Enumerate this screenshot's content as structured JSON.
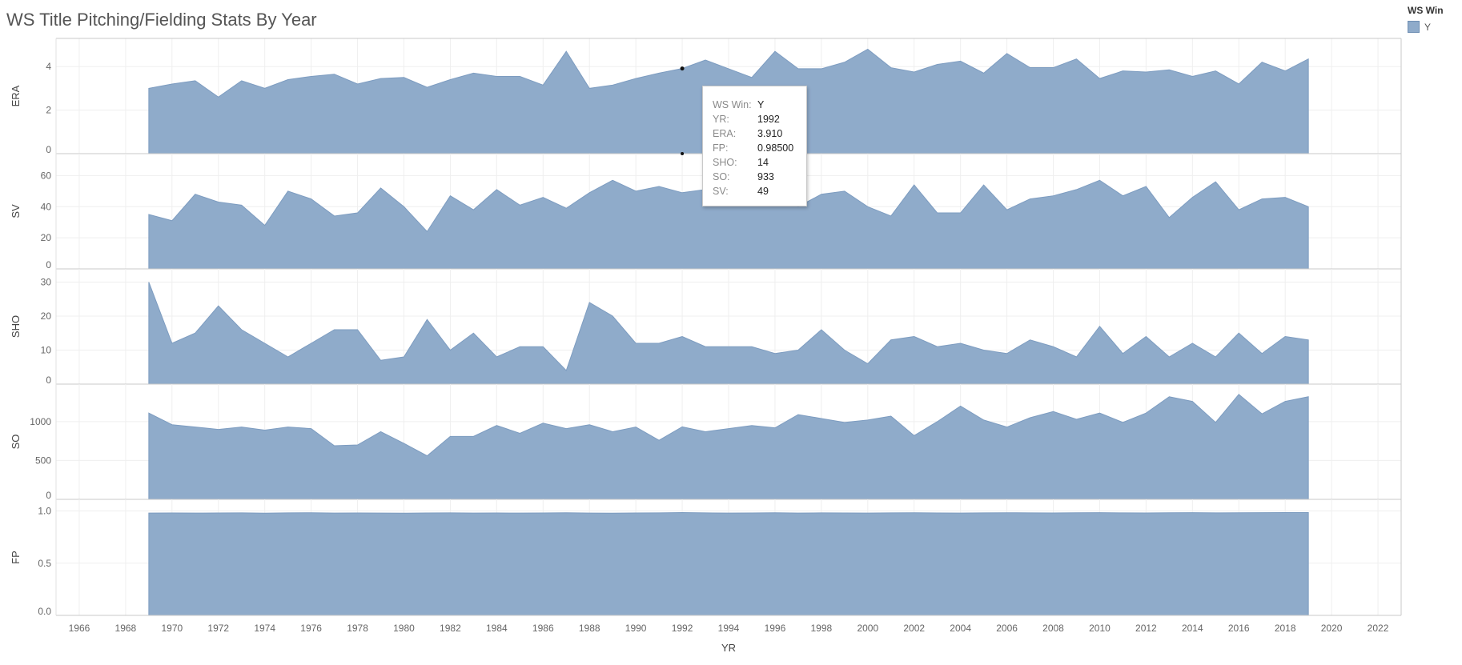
{
  "title": "WS Title Pitching/Fielding Stats By Year",
  "legend": {
    "title": "WS Win",
    "items": [
      {
        "label": "Y",
        "color": "#8fabca"
      }
    ]
  },
  "tooltip": {
    "rows": [
      {
        "label": "WS Win:",
        "value": "Y"
      },
      {
        "label": "YR:",
        "value": "1992"
      },
      {
        "label": "ERA:",
        "value": "3.910"
      },
      {
        "label": "FP:",
        "value": "0.98500"
      },
      {
        "label": "SHO:",
        "value": "14"
      },
      {
        "label": "SO:",
        "value": "933"
      },
      {
        "label": "SV:",
        "value": "49"
      }
    ]
  },
  "chart_data": {
    "type": "area",
    "xlabel": "YR",
    "x_ticks": [
      1966,
      1968,
      1970,
      1972,
      1974,
      1976,
      1978,
      1980,
      1982,
      1984,
      1986,
      1988,
      1990,
      1992,
      1994,
      1996,
      1998,
      2000,
      2002,
      2004,
      2006,
      2008,
      2010,
      2012,
      2014,
      2016,
      2018,
      2020,
      2022
    ],
    "xlim": [
      1965,
      2023
    ],
    "x": [
      1969,
      1970,
      1971,
      1972,
      1973,
      1974,
      1975,
      1976,
      1977,
      1978,
      1979,
      1980,
      1981,
      1982,
      1983,
      1984,
      1985,
      1986,
      1987,
      1988,
      1989,
      1990,
      1991,
      1992,
      1993,
      1994,
      1995,
      1996,
      1997,
      1998,
      1999,
      2000,
      2001,
      2002,
      2003,
      2004,
      2005,
      2006,
      2007,
      2008,
      2009,
      2010,
      2011,
      2012,
      2013,
      2014,
      2015,
      2016,
      2017,
      2018,
      2019
    ],
    "color": "#8fabca",
    "grid": true,
    "panels": [
      {
        "ylabel": "ERA",
        "ylim": [
          0,
          5
        ],
        "yticks": [
          0,
          2,
          4
        ],
        "values": [
          3.0,
          3.2,
          3.35,
          2.6,
          3.35,
          3.0,
          3.4,
          3.55,
          3.65,
          3.2,
          3.45,
          3.5,
          3.05,
          3.4,
          3.7,
          3.55,
          3.55,
          3.15,
          4.7,
          3.0,
          3.15,
          3.45,
          3.7,
          3.91,
          4.3,
          3.9,
          3.5,
          4.7,
          3.9,
          3.9,
          4.2,
          4.8,
          3.95,
          3.75,
          4.1,
          4.25,
          3.7,
          4.6,
          3.95,
          3.95,
          4.35,
          3.45,
          3.8,
          3.75,
          3.85,
          3.55,
          3.8,
          3.2,
          4.2,
          3.8,
          4.35
        ]
      },
      {
        "ylabel": "SV",
        "ylim": [
          0,
          70
        ],
        "yticks": [
          0,
          20,
          40,
          60
        ],
        "values": [
          35,
          31,
          48,
          43,
          41,
          28,
          50,
          45,
          34,
          36,
          52,
          40,
          24,
          47,
          38,
          51,
          41,
          46,
          39,
          49,
          57,
          50,
          53,
          49,
          51,
          46,
          51,
          49,
          40,
          48,
          50,
          40,
          34,
          54,
          36,
          36,
          54,
          38,
          45,
          47,
          51,
          57,
          47,
          53,
          33,
          46,
          56,
          38,
          45,
          46,
          40
        ]
      },
      {
        "ylabel": "SHO",
        "ylim": [
          0,
          32
        ],
        "yticks": [
          0,
          10,
          20,
          30
        ],
        "values": [
          30,
          12,
          15,
          23,
          16,
          12,
          8,
          12,
          16,
          16,
          7,
          8,
          19,
          10,
          15,
          8,
          11,
          11,
          4,
          24,
          20,
          12,
          12,
          14,
          11,
          11,
          11,
          9,
          10,
          16,
          10,
          6,
          13,
          14,
          11,
          12,
          10,
          9,
          13,
          11,
          8,
          17,
          9,
          14,
          8,
          12,
          8,
          15,
          9,
          14,
          13
        ]
      },
      {
        "ylabel": "SO",
        "ylim": [
          0,
          1400
        ],
        "yticks": [
          0,
          500,
          1000
        ],
        "values": [
          1110,
          960,
          930,
          900,
          930,
          890,
          930,
          910,
          690,
          700,
          870,
          720,
          560,
          810,
          810,
          950,
          850,
          980,
          910,
          960,
          870,
          930,
          760,
          933,
          870,
          910,
          950,
          920,
          1090,
          1040,
          990,
          1020,
          1070,
          820,
          1000,
          1200,
          1020,
          930,
          1050,
          1130,
          1030,
          1110,
          990,
          1110,
          1320,
          1260,
          990,
          1350,
          1100,
          1260,
          1320
        ]
      },
      {
        "ylabel": "FP",
        "ylim": [
          0,
          1.05
        ],
        "yticks": [
          0.0,
          0.5,
          1.0
        ],
        "tick_labels": [
          "0.0",
          "0.5",
          "1.0"
        ],
        "values": [
          0.98,
          0.981,
          0.98,
          0.981,
          0.982,
          0.979,
          0.982,
          0.983,
          0.98,
          0.981,
          0.98,
          0.979,
          0.981,
          0.982,
          0.98,
          0.981,
          0.98,
          0.981,
          0.983,
          0.98,
          0.979,
          0.981,
          0.982,
          0.985,
          0.982,
          0.98,
          0.981,
          0.983,
          0.98,
          0.982,
          0.981,
          0.98,
          0.982,
          0.983,
          0.981,
          0.98,
          0.982,
          0.983,
          0.982,
          0.981,
          0.983,
          0.984,
          0.982,
          0.981,
          0.983,
          0.984,
          0.982,
          0.983,
          0.984,
          0.985,
          0.985
        ]
      }
    ]
  }
}
